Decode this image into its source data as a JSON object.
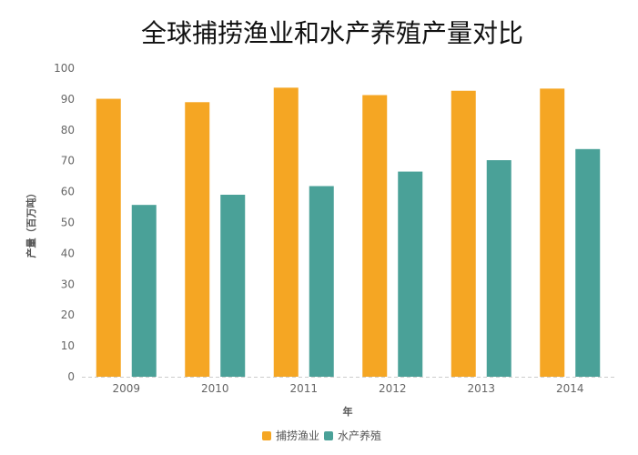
{
  "chart_data": {
    "type": "bar",
    "title": "全球捕捞渔业和水产养殖产量对比",
    "xlabel": "年",
    "ylabel": "产量（百万吨）",
    "categories": [
      "2009",
      "2010",
      "2011",
      "2012",
      "2013",
      "2014"
    ],
    "ylim": [
      0,
      100
    ],
    "yticks": [
      0,
      10,
      20,
      30,
      40,
      50,
      60,
      70,
      80,
      90,
      100
    ],
    "grid": false,
    "legend_position": "bottom-center",
    "series": [
      {
        "name": "捕捞渔业",
        "color": "#F5A623",
        "values": [
          90.1,
          89.0,
          93.7,
          91.3,
          92.7,
          93.4
        ]
      },
      {
        "name": "水产养殖",
        "color": "#4AA198",
        "values": [
          55.7,
          59.0,
          61.8,
          66.5,
          70.2,
          73.8
        ]
      }
    ]
  }
}
